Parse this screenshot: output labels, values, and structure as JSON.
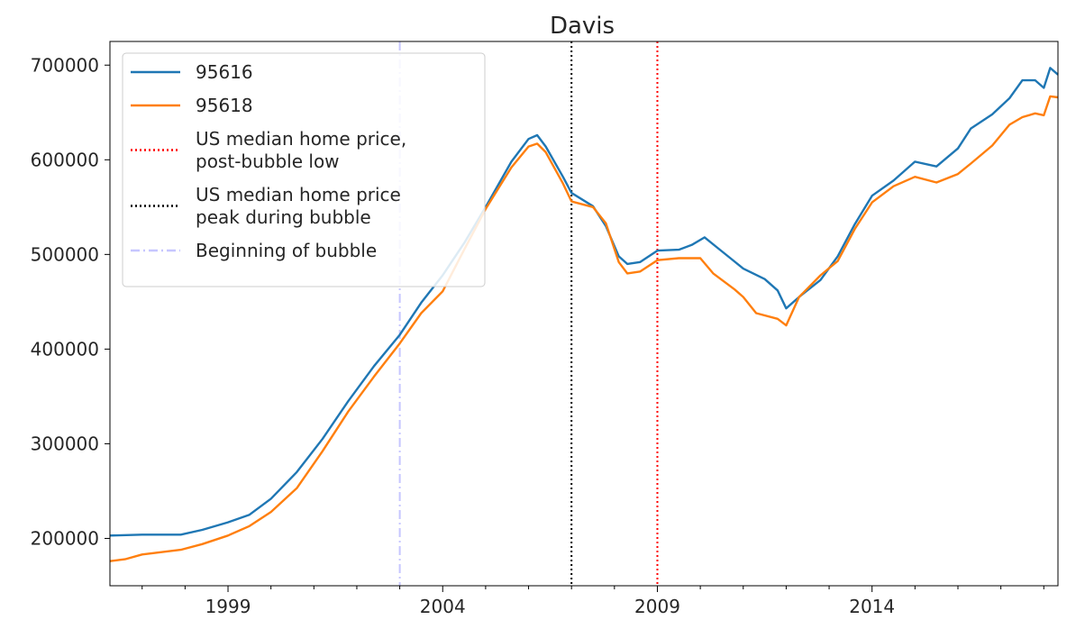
{
  "chart_data": {
    "type": "line",
    "title": "Davis",
    "xlabel": "",
    "ylabel": "",
    "xlim": [
      1996.25,
      2018.33
    ],
    "ylim": [
      150000,
      725000
    ],
    "x_ticks_major": [
      1999,
      2004,
      2009,
      2014
    ],
    "x_tick_labels": [
      "1999",
      "2004",
      "2009",
      "2014"
    ],
    "y_ticks": [
      200000,
      300000,
      400000,
      500000,
      600000,
      700000
    ],
    "y_tick_labels": [
      "200000",
      "300000",
      "400000",
      "500000",
      "600000",
      "700000"
    ],
    "grid": false,
    "legend_position": "upper-left",
    "series": [
      {
        "name": "95616",
        "color": "#1f77b4",
        "points": [
          [
            1996.25,
            203000
          ],
          [
            1997.0,
            204000
          ],
          [
            1997.9,
            204000
          ],
          [
            1998.4,
            209000
          ],
          [
            1999.0,
            217000
          ],
          [
            1999.5,
            225000
          ],
          [
            2000.0,
            242000
          ],
          [
            2000.6,
            270000
          ],
          [
            2001.2,
            305000
          ],
          [
            2001.8,
            345000
          ],
          [
            2002.4,
            382000
          ],
          [
            2003.0,
            415000
          ],
          [
            2003.5,
            449000
          ],
          [
            2004.0,
            478000
          ],
          [
            2004.5,
            512000
          ],
          [
            2005.0,
            550000
          ],
          [
            2005.6,
            598000
          ],
          [
            2006.0,
            622000
          ],
          [
            2006.2,
            626000
          ],
          [
            2006.4,
            614000
          ],
          [
            2006.8,
            582000
          ],
          [
            2007.0,
            565000
          ],
          [
            2007.5,
            551000
          ],
          [
            2007.8,
            530000
          ],
          [
            2008.1,
            498000
          ],
          [
            2008.3,
            490000
          ],
          [
            2008.6,
            492000
          ],
          [
            2009.0,
            504000
          ],
          [
            2009.5,
            505000
          ],
          [
            2009.8,
            510000
          ],
          [
            2010.1,
            518000
          ],
          [
            2010.4,
            507000
          ],
          [
            2010.7,
            496000
          ],
          [
            2011.0,
            485000
          ],
          [
            2011.5,
            474000
          ],
          [
            2011.8,
            462000
          ],
          [
            2012.0,
            443000
          ],
          [
            2012.3,
            455000
          ],
          [
            2012.8,
            473000
          ],
          [
            2013.2,
            498000
          ],
          [
            2013.6,
            532000
          ],
          [
            2014.0,
            562000
          ],
          [
            2014.5,
            578000
          ],
          [
            2015.0,
            598000
          ],
          [
            2015.5,
            593000
          ],
          [
            2016.0,
            612000
          ],
          [
            2016.3,
            633000
          ],
          [
            2016.8,
            648000
          ],
          [
            2017.2,
            665000
          ],
          [
            2017.5,
            684000
          ],
          [
            2017.8,
            684000
          ],
          [
            2018.0,
            676000
          ],
          [
            2018.15,
            697000
          ],
          [
            2018.33,
            690000
          ]
        ]
      },
      {
        "name": "95618",
        "color": "#ff7f0e",
        "points": [
          [
            1996.25,
            176000
          ],
          [
            1996.6,
            178000
          ],
          [
            1997.0,
            183000
          ],
          [
            1997.9,
            188000
          ],
          [
            1998.4,
            194000
          ],
          [
            1999.0,
            203000
          ],
          [
            1999.5,
            213000
          ],
          [
            2000.0,
            228000
          ],
          [
            2000.6,
            253000
          ],
          [
            2001.2,
            292000
          ],
          [
            2001.8,
            334000
          ],
          [
            2002.4,
            371000
          ],
          [
            2003.0,
            406000
          ],
          [
            2003.5,
            438000
          ],
          [
            2004.0,
            461000
          ],
          [
            2004.5,
            505000
          ],
          [
            2005.0,
            548000
          ],
          [
            2005.6,
            592000
          ],
          [
            2006.0,
            614000
          ],
          [
            2006.2,
            617000
          ],
          [
            2006.4,
            608000
          ],
          [
            2006.8,
            575000
          ],
          [
            2007.0,
            556000
          ],
          [
            2007.5,
            550000
          ],
          [
            2007.8,
            533000
          ],
          [
            2008.1,
            492000
          ],
          [
            2008.3,
            480000
          ],
          [
            2008.6,
            482000
          ],
          [
            2009.0,
            494000
          ],
          [
            2009.5,
            496000
          ],
          [
            2010.0,
            496000
          ],
          [
            2010.3,
            480000
          ],
          [
            2010.8,
            463000
          ],
          [
            2011.0,
            455000
          ],
          [
            2011.3,
            438000
          ],
          [
            2011.8,
            432000
          ],
          [
            2012.0,
            425000
          ],
          [
            2012.3,
            455000
          ],
          [
            2012.8,
            478000
          ],
          [
            2013.2,
            493000
          ],
          [
            2013.6,
            527000
          ],
          [
            2014.0,
            555000
          ],
          [
            2014.5,
            572000
          ],
          [
            2015.0,
            582000
          ],
          [
            2015.5,
            576000
          ],
          [
            2016.0,
            585000
          ],
          [
            2016.3,
            596000
          ],
          [
            2016.8,
            615000
          ],
          [
            2017.2,
            637000
          ],
          [
            2017.5,
            645000
          ],
          [
            2017.8,
            649000
          ],
          [
            2018.0,
            647000
          ],
          [
            2018.15,
            667000
          ],
          [
            2018.33,
            666000
          ]
        ]
      }
    ],
    "reference_lines": [
      {
        "name": "US median home price, post-bubble low",
        "label_lines": [
          "US median home price,",
          "post-bubble low"
        ],
        "x": 2009.0,
        "color": "#ff0000",
        "style": "dotted"
      },
      {
        "name": "US median home price peak during bubble",
        "label_lines": [
          "US median home price",
          "peak during bubble"
        ],
        "x": 2007.0,
        "color": "#000000",
        "style": "dotted"
      },
      {
        "name": "Beginning of bubble",
        "label_lines": [
          "Beginning of bubble"
        ],
        "x": 2003.0,
        "color": "#c6c6ff",
        "style": "dashdot"
      }
    ]
  }
}
